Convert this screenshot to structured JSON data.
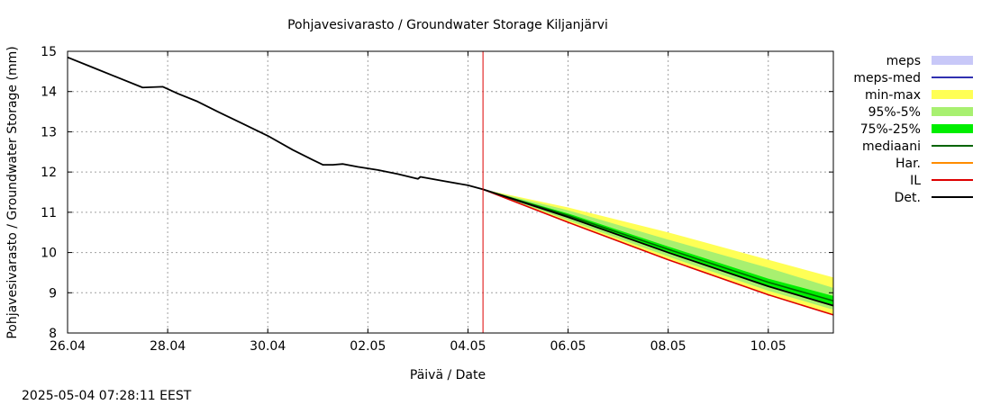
{
  "chart_data": {
    "type": "line",
    "title": "Pohjavesivarasto / Groundwater Storage   Kiljanjärvi",
    "xlabel": "Päivä / Date",
    "ylabel": "Pohjavesivarasto / Groundwater Storage (mm)",
    "timestamp": "2025-05-04 07:28:11 EEST",
    "xlim": [
      0,
      15.3
    ],
    "ylim": [
      8,
      15
    ],
    "x_ticks": [
      {
        "x": 0,
        "label": "26.04"
      },
      {
        "x": 2,
        "label": "28.04"
      },
      {
        "x": 4,
        "label": "30.04"
      },
      {
        "x": 6,
        "label": "02.05"
      },
      {
        "x": 8,
        "label": "04.05"
      },
      {
        "x": 10,
        "label": "06.05"
      },
      {
        "x": 12,
        "label": "08.05"
      },
      {
        "x": 14,
        "label": "10.05"
      }
    ],
    "y_ticks": [
      8,
      9,
      10,
      11,
      12,
      13,
      14,
      15
    ],
    "grid": true,
    "forecast_start_x": 8.3,
    "legend": [
      {
        "key": "meps",
        "label": "meps",
        "kind": "band",
        "color": "#c8c8f8"
      },
      {
        "key": "meps_med",
        "label": "meps-med",
        "kind": "line",
        "color": "#3030b0"
      },
      {
        "key": "minmax",
        "label": "min-max",
        "kind": "band",
        "color": "#ffff55"
      },
      {
        "key": "p95_5",
        "label": "95%-5%",
        "kind": "band",
        "color": "#a8f070"
      },
      {
        "key": "p75_25",
        "label": "75%-25%",
        "kind": "band",
        "color": "#00ee00"
      },
      {
        "key": "median",
        "label": "mediaani",
        "kind": "line",
        "color": "#006400"
      },
      {
        "key": "har",
        "label": "Har.",
        "kind": "line",
        "color": "#ff8c00"
      },
      {
        "key": "il",
        "label": "IL",
        "kind": "line",
        "color": "#dd0000"
      },
      {
        "key": "det",
        "label": "Det.",
        "kind": "line",
        "color": "#000000"
      }
    ],
    "observed": {
      "name": "Det.",
      "x": [
        0,
        0.5,
        1.0,
        1.5,
        1.9,
        2.2,
        2.6,
        3.0,
        3.5,
        4.0,
        4.5,
        4.9,
        5.1,
        5.3,
        5.5,
        5.8,
        6.2,
        6.6,
        7.0,
        7.05,
        7.5,
        8.0,
        8.3
      ],
      "y": [
        14.85,
        14.6,
        14.35,
        14.1,
        14.12,
        13.95,
        13.75,
        13.5,
        13.2,
        12.9,
        12.55,
        12.3,
        12.18,
        12.18,
        12.2,
        12.13,
        12.05,
        11.95,
        11.83,
        11.88,
        11.78,
        11.67,
        11.57
      ]
    },
    "forecast": {
      "x": [
        8.3,
        10,
        12,
        14,
        15.3
      ],
      "minmax": {
        "low": [
          11.57,
          10.75,
          9.82,
          8.95,
          8.45
        ],
        "high": [
          11.57,
          11.12,
          10.5,
          9.82,
          9.38
        ]
      },
      "p95_5": {
        "low": [
          11.57,
          10.8,
          9.9,
          9.05,
          8.58
        ],
        "high": [
          11.57,
          11.05,
          10.32,
          9.62,
          9.12
        ]
      },
      "p75_25": {
        "low": [
          11.57,
          10.87,
          10.02,
          9.18,
          8.7
        ],
        "high": [
          11.57,
          10.97,
          10.15,
          9.35,
          8.92
        ]
      },
      "median": [
        11.57,
        10.92,
        10.08,
        9.26,
        8.8
      ],
      "det": [
        11.57,
        10.88,
        10.0,
        9.16,
        8.68
      ],
      "il": [
        11.57,
        10.75,
        9.82,
        8.95,
        8.45
      ]
    }
  }
}
